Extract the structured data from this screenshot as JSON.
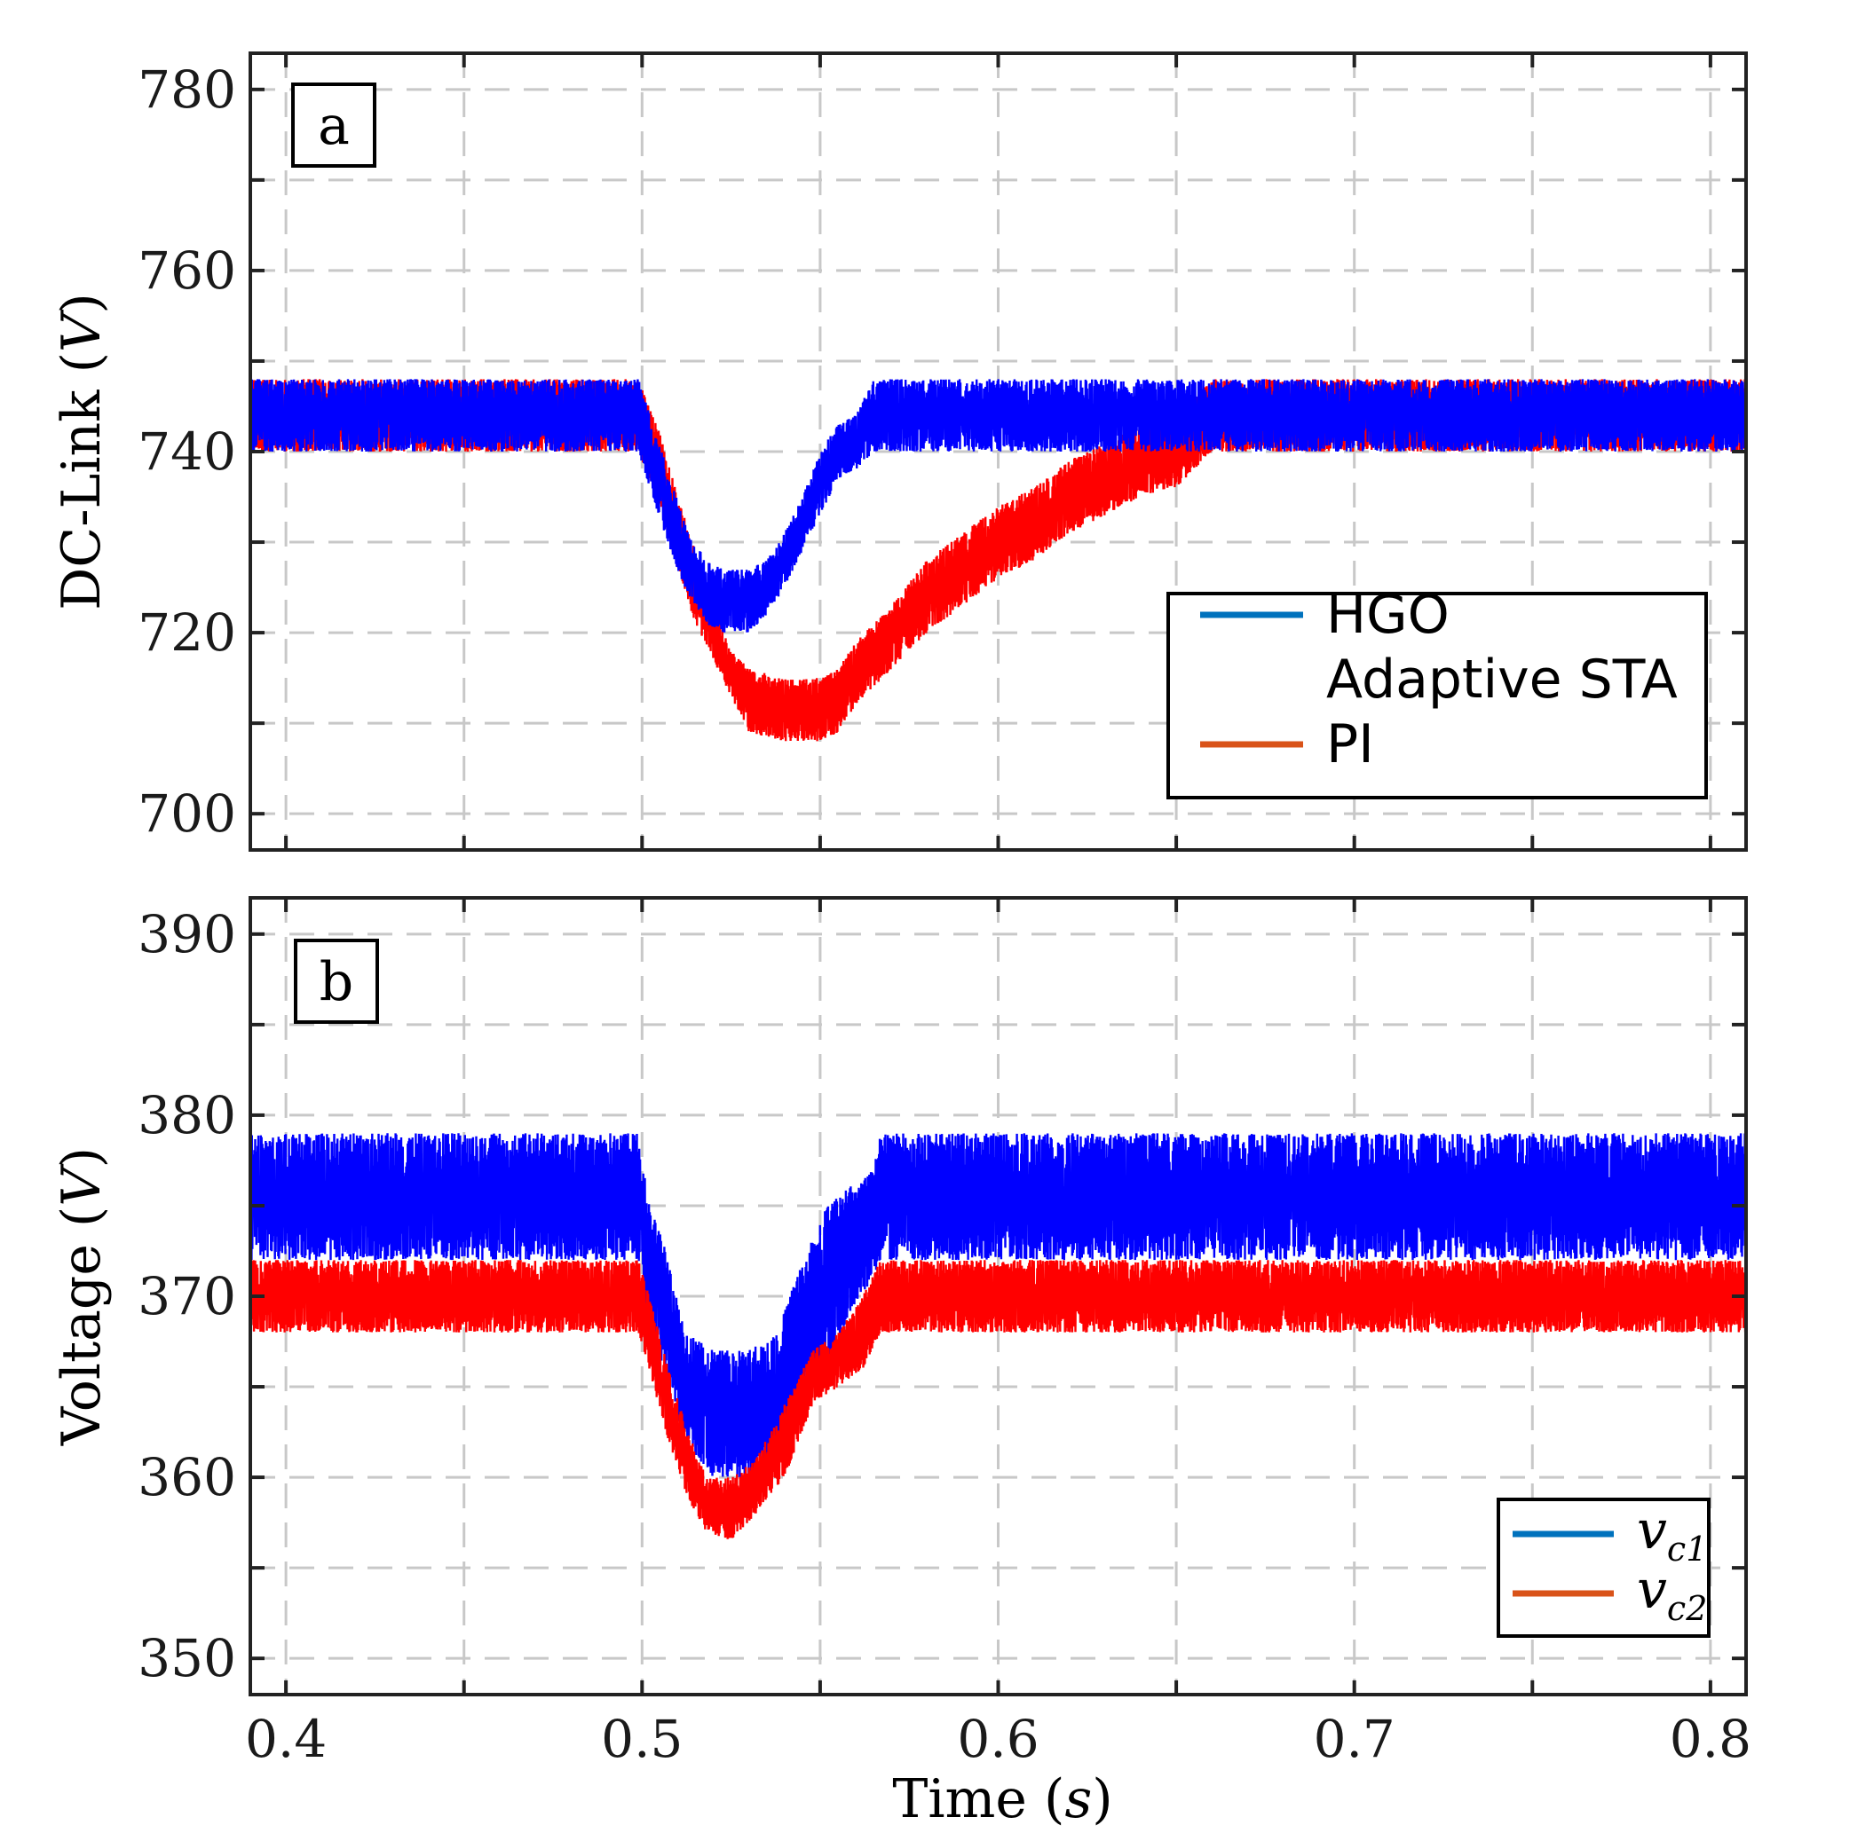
{
  "chart_data": [
    {
      "type": "line",
      "panel_label": "a",
      "title": "",
      "xlabel": "",
      "ylabel": "DC-Link (V)",
      "ylabel_parts": {
        "text": "DC-Link ",
        "open": "(",
        "var": "V",
        "close": ")"
      },
      "xlim": [
        0.39,
        0.81
      ],
      "ylim": [
        696,
        784
      ],
      "xticks": [
        0.4,
        0.45,
        0.5,
        0.55,
        0.6,
        0.65,
        0.7,
        0.75,
        0.8
      ],
      "xtick_labels": [
        "",
        "",
        "",
        "",
        "",
        "",
        "",
        "",
        ""
      ],
      "yticks": [
        700,
        710,
        720,
        730,
        740,
        750,
        760,
        770,
        780
      ],
      "ytick_labels": [
        "700",
        "",
        "720",
        "",
        "740",
        "",
        "760",
        "",
        "780"
      ],
      "grid": true,
      "legend_position": "lower-right",
      "legend": [
        "HGO",
        "Adaptive STA",
        "PI"
      ],
      "series": [
        {
          "name": "PI",
          "color": "#ff0000",
          "legend_color": "#d95319",
          "x": [
            0.39,
            0.499,
            0.505,
            0.51,
            0.515,
            0.52,
            0.525,
            0.53,
            0.54,
            0.55,
            0.555,
            0.56,
            0.57,
            0.58,
            0.59,
            0.6,
            0.61,
            0.62,
            0.63,
            0.64,
            0.65,
            0.66,
            0.81
          ],
          "low": [
            740,
            740,
            734,
            727,
            721,
            717,
            713,
            709,
            708,
            708,
            709,
            712,
            716,
            720,
            723,
            726,
            728,
            731,
            733,
            735,
            736,
            740,
            740
          ],
          "high": [
            748,
            748,
            742,
            735,
            729,
            723,
            718,
            716,
            715,
            715,
            716,
            719,
            723,
            728,
            731,
            734,
            736,
            739,
            741,
            743,
            744,
            748,
            748
          ]
        },
        {
          "name": "HGO",
          "color": "#0000ff",
          "legend_color": "#0072bd",
          "x": [
            0.39,
            0.499,
            0.503,
            0.508,
            0.513,
            0.518,
            0.523,
            0.53,
            0.535,
            0.54,
            0.545,
            0.55,
            0.555,
            0.56,
            0.565,
            0.568,
            0.81
          ],
          "low": [
            740,
            740,
            735,
            729,
            724,
            721,
            720,
            720,
            722,
            725,
            729,
            733,
            737,
            738,
            740,
            740,
            740
          ],
          "high": [
            748,
            748,
            743,
            737,
            731,
            728,
            727,
            727,
            728,
            731,
            735,
            740,
            743,
            744,
            748,
            748,
            748
          ]
        }
      ]
    },
    {
      "type": "line",
      "panel_label": "b",
      "title": "",
      "xlabel": "Time (s)",
      "xlabel_parts": {
        "text": "Time ",
        "open": "(",
        "var": "s",
        "close": ")"
      },
      "ylabel": "Voltage (V)",
      "ylabel_parts": {
        "text": "Voltage ",
        "open": "(",
        "var": "V",
        "close": ")"
      },
      "xlim": [
        0.39,
        0.81
      ],
      "ylim": [
        348,
        392
      ],
      "xticks": [
        0.4,
        0.45,
        0.5,
        0.55,
        0.6,
        0.65,
        0.7,
        0.75,
        0.8
      ],
      "xtick_labels": [
        "0.4",
        "",
        "0.5",
        "",
        "0.6",
        "",
        "0.7",
        "",
        "0.8"
      ],
      "yticks": [
        350,
        355,
        360,
        365,
        370,
        375,
        380,
        385,
        390
      ],
      "ytick_labels": [
        "350",
        "",
        "360",
        "",
        "370",
        "",
        "380",
        "",
        "390"
      ],
      "grid": true,
      "legend_position": "lower-right",
      "legend": [
        {
          "base": "v",
          "sub": "c1"
        },
        {
          "base": "v",
          "sub": "c2"
        }
      ],
      "series": [
        {
          "name": "vc1",
          "color": "#0000ff",
          "legend_color": "#0072bd",
          "x": [
            0.39,
            0.499,
            0.502,
            0.506,
            0.512,
            0.52,
            0.53,
            0.538,
            0.545,
            0.552,
            0.558,
            0.565,
            0.567,
            0.81
          ],
          "low": [
            372,
            372,
            368,
            366,
            362,
            360,
            360,
            361,
            364,
            366,
            369,
            371,
            372,
            372
          ],
          "high": [
            379,
            379,
            375,
            373,
            368,
            367,
            367,
            368,
            372,
            375,
            376,
            377,
            379,
            379
          ]
        },
        {
          "name": "vc2",
          "color": "#ff0000",
          "legend_color": "#d95319",
          "x": [
            0.39,
            0.499,
            0.502,
            0.506,
            0.512,
            0.518,
            0.525,
            0.532,
            0.54,
            0.548,
            0.555,
            0.562,
            0.567,
            0.81
          ],
          "low": [
            368,
            368,
            366,
            363,
            359,
            357,
            356.5,
            358,
            360,
            364,
            365,
            366,
            368,
            368
          ],
          "high": [
            372,
            372,
            370,
            367,
            363,
            360,
            360,
            361,
            364,
            367,
            368,
            370,
            372,
            372
          ]
        }
      ]
    }
  ]
}
